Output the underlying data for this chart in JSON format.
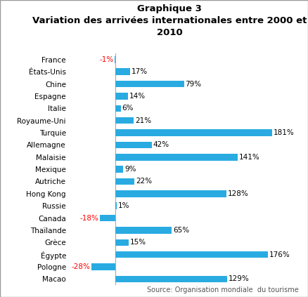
{
  "title": "Graphique 3\nVariation des arrivées internationales entre 2000 et\n2010",
  "categories": [
    "France",
    "États-Unis",
    "Chine",
    "Espagne",
    "Italie",
    "Royaume-Uni",
    "Turquie",
    "Allemagne",
    "Malaisie",
    "Mexique",
    "Autriche",
    "Hong Kong",
    "Russie",
    "Canada",
    "Thaïlande",
    "Grèce",
    "Égypte",
    "Pologne",
    "Macao"
  ],
  "values": [
    -1,
    17,
    79,
    14,
    6,
    21,
    181,
    42,
    141,
    9,
    22,
    128,
    1,
    -18,
    65,
    15,
    176,
    -28,
    129
  ],
  "bar_color": "#29ABE2",
  "label_color_positive": "#000000",
  "label_color_negative": "#FF0000",
  "background_color": "#FFFFFF",
  "border_color": "#999999",
  "source_text": "Source: Organisation mondiale  du tourisme",
  "title_fontsize": 9.5,
  "label_fontsize": 7.5,
  "tick_fontsize": 7.5,
  "source_fontsize": 7
}
